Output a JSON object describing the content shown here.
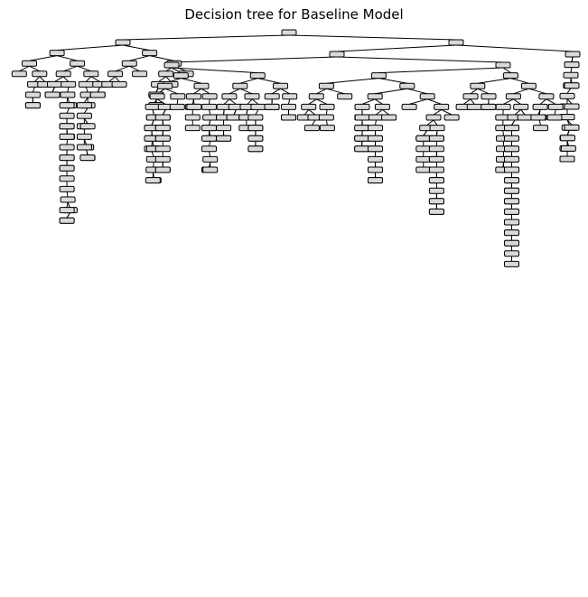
{
  "title": "Decision tree for Baseline Model",
  "tree": {
    "visible_depth_levels": 48,
    "node_style": {
      "fill": "#d9d9d9",
      "stroke": "#000000",
      "edge_color": "#000000"
    }
  }
}
